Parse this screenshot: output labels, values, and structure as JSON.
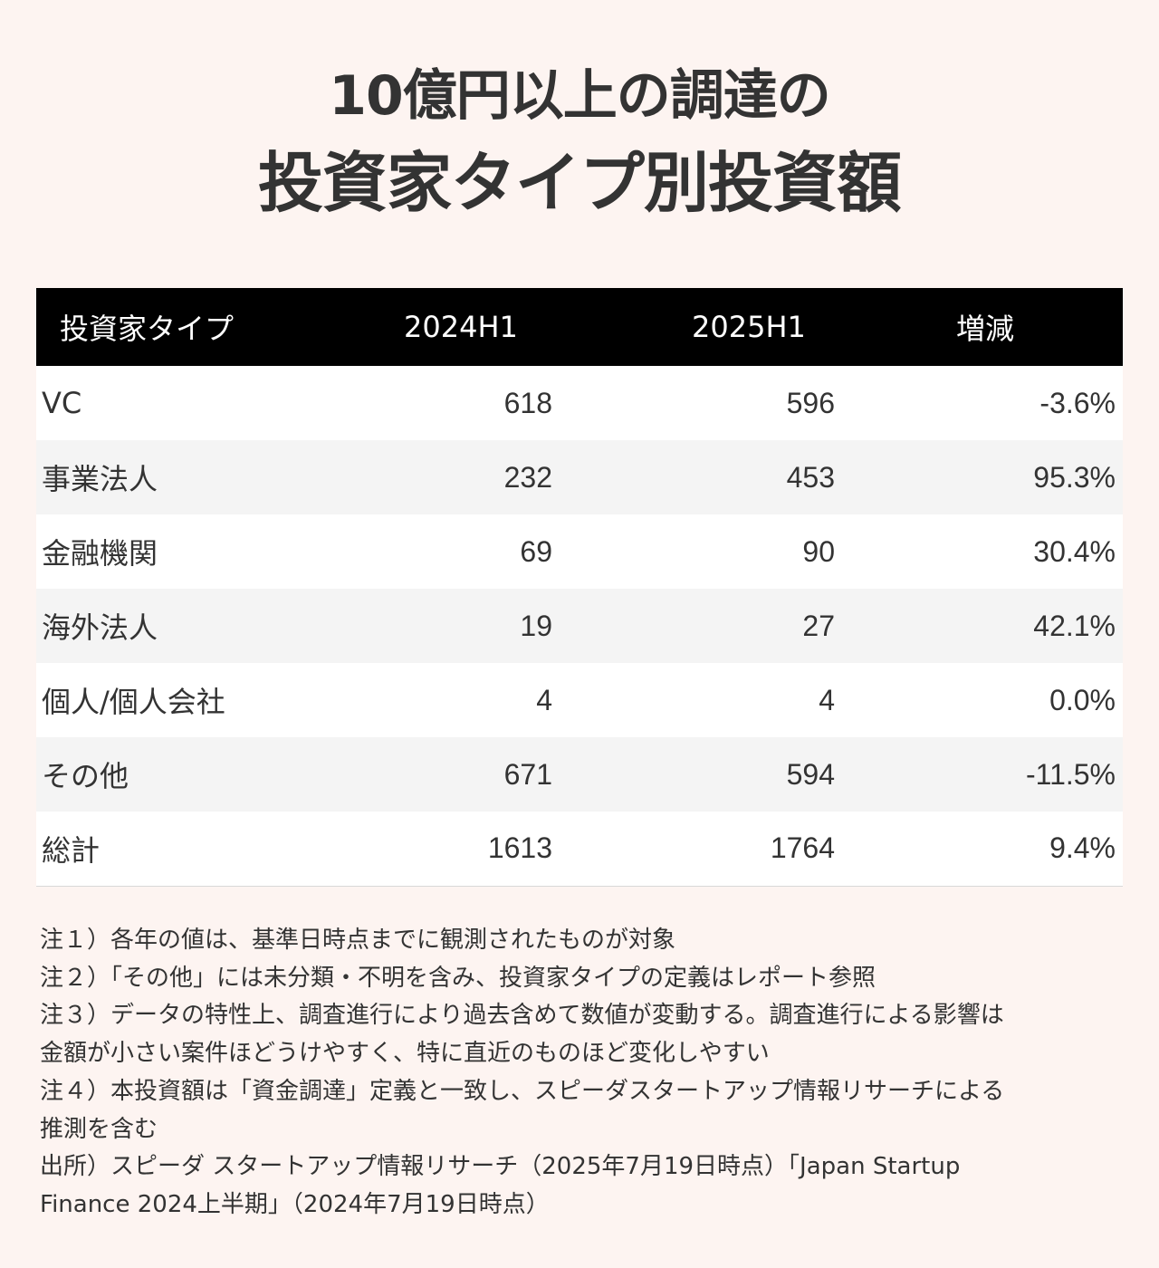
{
  "title": {
    "line1": "10億円以上の調達の",
    "line2": "投資家タイプ別投資額"
  },
  "chart_data": {
    "type": "table",
    "columns": [
      "投資家タイプ",
      "2024H1",
      "2025H1",
      "増減"
    ],
    "rows": [
      {
        "type": "VC",
        "h1_2024": "618",
        "h1_2025": "596",
        "change": "-3.6%"
      },
      {
        "type": "事業法人",
        "h1_2024": "232",
        "h1_2025": "453",
        "change": "95.3%"
      },
      {
        "type": "金融機関",
        "h1_2024": "69",
        "h1_2025": "90",
        "change": "30.4%"
      },
      {
        "type": "海外法人",
        "h1_2024": "19",
        "h1_2025": "27",
        "change": "42.1%"
      },
      {
        "type": "個人/個人会社",
        "h1_2024": "4",
        "h1_2025": "4",
        "change": "0.0%"
      },
      {
        "type": "その他",
        "h1_2024": "671",
        "h1_2025": "594",
        "change": "-11.5%"
      },
      {
        "type": "総計",
        "h1_2024": "1613",
        "h1_2025": "1764",
        "change": "9.4%"
      }
    ]
  },
  "notes": [
    "注１）各年の値は、基準日時点までに観測されたものが対象",
    "注２）「その他」には未分類・不明を含み、投資家タイプの定義はレポート参照",
    "注３）データの特性上、調査進行により過去含めて数値が変動する。調査進行による影響は",
    "金額が小さい案件ほどうけやすく、特に直近のものほど変化しやすい",
    "注４）本投資額は「資金調達」定義と一致し、スピーダスタートアップ情報リサーチによる",
    "推測を含む",
    "出所）スピーダ スタートアップ情報リサーチ（2025年7月19日時点）「Japan Startup",
    "Finance 2024上半期」（2024年7月19日時点）"
  ]
}
